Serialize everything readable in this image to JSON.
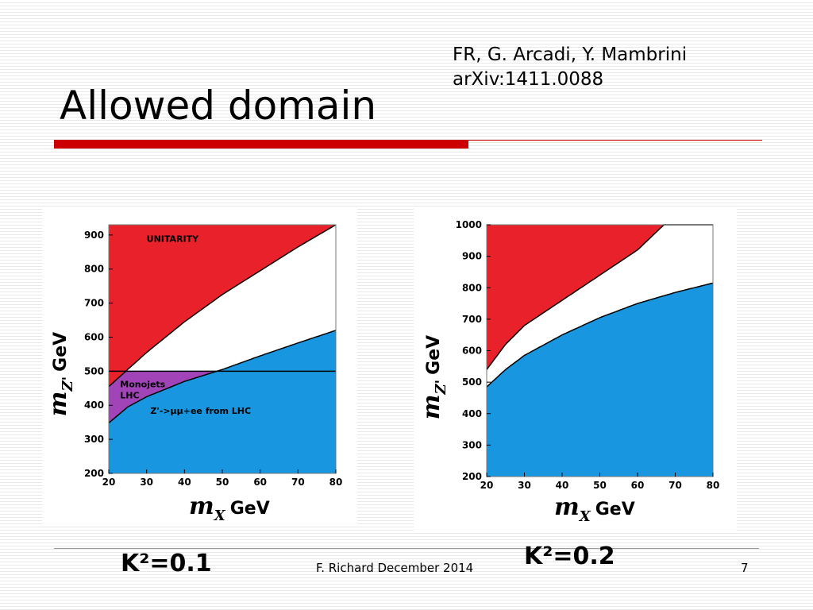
{
  "slide": {
    "title": "Allowed domain",
    "ref_line1": "FR, G. Arcadi, Y. Mambrini",
    "ref_line2": "arXiv:1411.0088",
    "footer": "F. Richard December 2014",
    "page_number": "7",
    "k_left": "K²=0.1",
    "k_right": "K²=0.2"
  },
  "colors": {
    "unitarity": "#e8212b",
    "monojet": "#a044b8",
    "lhc": "#1896e0",
    "allowed": "#ffffff",
    "accent": "#cc0000"
  },
  "chart_data": [
    {
      "type": "area",
      "title": "",
      "xlabel_symbol": "m",
      "xlabel_sub": "X",
      "xlabel_unit": "GeV",
      "ylabel_symbol": "m",
      "ylabel_sub": "Z'",
      "ylabel_unit": "GeV",
      "xlim": [
        20,
        80
      ],
      "ylim": [
        200,
        930
      ],
      "xticks": [
        20,
        30,
        40,
        50,
        60,
        70,
        80
      ],
      "yticks": [
        200,
        300,
        400,
        500,
        600,
        700,
        800,
        900
      ],
      "ytick_labels": [
        "200",
        "300",
        "400",
        "500",
        "600",
        "700",
        "800",
        "900"
      ],
      "hline": 500,
      "region_labels": {
        "unitarity": "UNITARITY",
        "monojet_1": "Monojets",
        "monojet_2": "LHC",
        "lhc": "Z'->µµ+ee from LHC"
      },
      "series": [
        {
          "name": "UNITARITY",
          "x": [
            20,
            25,
            30,
            40,
            50,
            60,
            70,
            80
          ],
          "y": [
            455,
            505,
            555,
            645,
            725,
            795,
            865,
            930
          ]
        },
        {
          "name": "Z'->µµ+ee from LHC",
          "x": [
            20,
            25,
            30,
            40,
            50,
            60,
            70,
            80
          ],
          "y": [
            348,
            395,
            425,
            470,
            505,
            545,
            583,
            620
          ]
        }
      ]
    },
    {
      "type": "area",
      "title": "",
      "xlabel_symbol": "m",
      "xlabel_sub": "X",
      "xlabel_unit": "GeV",
      "ylabel_symbol": "m",
      "ylabel_sub": "Z'",
      "ylabel_unit": "GeV",
      "xlim": [
        20,
        80
      ],
      "ylim": [
        200,
        1000
      ],
      "xticks": [
        20,
        30,
        40,
        50,
        60,
        70,
        80
      ],
      "yticks": [
        200,
        300,
        400,
        500,
        600,
        700,
        800,
        900,
        1000
      ],
      "ytick_labels": [
        "200",
        "300",
        "400",
        "500",
        "600",
        "700",
        "800",
        "900",
        "1000"
      ],
      "series": [
        {
          "name": "unitarity",
          "x": [
            20,
            25,
            30,
            40,
            50,
            60,
            67,
            80
          ],
          "y": [
            540,
            620,
            680,
            760,
            840,
            920,
            1000,
            1000
          ]
        },
        {
          "name": "LHC",
          "x": [
            20,
            25,
            30,
            40,
            50,
            60,
            70,
            80
          ],
          "y": [
            485,
            540,
            585,
            650,
            705,
            750,
            785,
            815
          ]
        }
      ]
    }
  ]
}
